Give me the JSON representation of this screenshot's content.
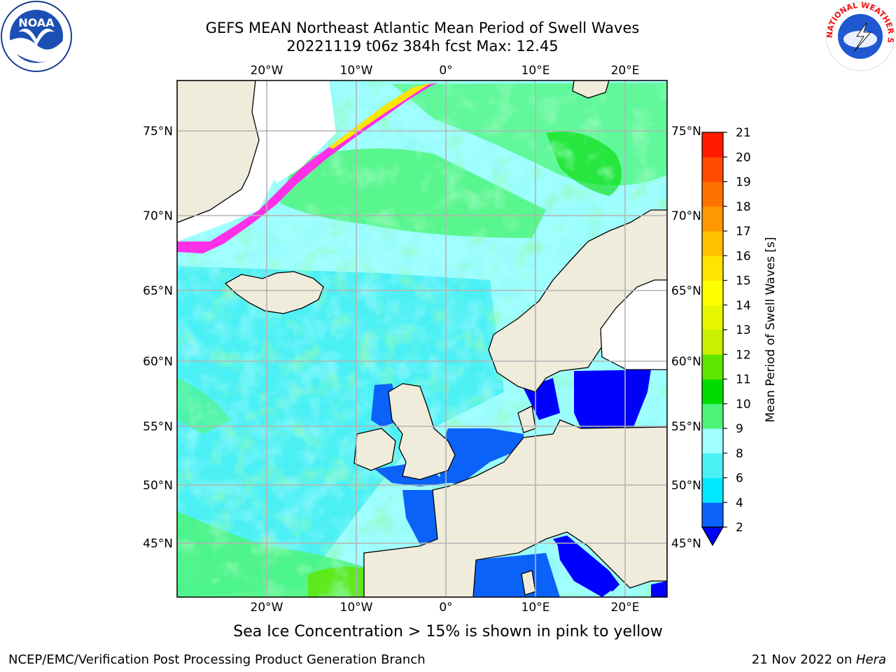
{
  "header": {
    "title_line1": "GEFS MEAN Northeast Atlantic Mean Period of Swell Waves",
    "title_line2": "20221119 t06z 384h fcst   Max: 12.45"
  },
  "map": {
    "lon_labels": [
      "20°W",
      "10°W",
      "0°",
      "10°E",
      "20°E"
    ],
    "lat_labels": [
      "75°N",
      "70°N",
      "65°N",
      "60°N",
      "55°N",
      "50°N",
      "45°N"
    ]
  },
  "colorbar": {
    "label": "Mean Period of Swell Waves [s]",
    "ticks": [
      "2",
      "4",
      "6",
      "8",
      "9",
      "10",
      "11",
      "12",
      "13",
      "14",
      "15",
      "16",
      "17",
      "18",
      "19",
      "20",
      "21"
    ],
    "colors": [
      "#0b62f8",
      "#00e8ff",
      "#4bf0f5",
      "#a0ffff",
      "#4cf57a",
      "#00dc00",
      "#5fe600",
      "#c8f000",
      "#e6f500",
      "#ffff00",
      "#ffe400",
      "#ffc000",
      "#ff9800",
      "#ff7200",
      "#ff4a00",
      "#ff1a00"
    ],
    "under_color": "#0000ff"
  },
  "colors": {
    "land": "#efecdc",
    "ice_pink": "#ff30e8",
    "ice_yellow": "#ffe600",
    "grid": "#b4b4b4"
  },
  "caption": "Sea Ice Concentration > 15% is shown in pink to yellow",
  "footer": {
    "left": "NCEP/EMC/Verification Post Processing Product Generation Branch",
    "right_date": "21 Nov 2022 on ",
    "right_host": "Hera"
  },
  "logos": {
    "noaa_text": "NOAA",
    "nws_text": "NATIONAL WEATHER SERVICE"
  }
}
